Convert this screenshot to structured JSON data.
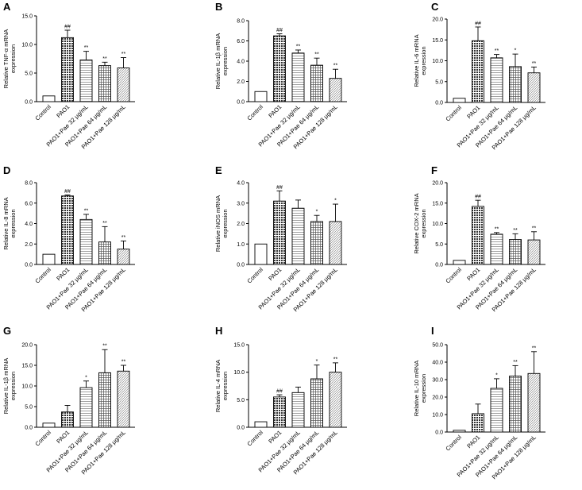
{
  "categories": [
    "Control",
    "PAO1",
    "PAO1+Pae 32 μg/mL",
    "PAO1+Pae 64 μg/mL",
    "PAO1+Pae 128 μg/mL"
  ],
  "chart_data": [
    {
      "type": "bar",
      "panel": "A",
      "ylabel": [
        "Relative TNF-α mRNA",
        "expression"
      ],
      "ylim": [
        0,
        15
      ],
      "yticks": [
        0,
        5,
        10,
        15
      ],
      "tick_labels": [
        "0.0",
        "5.0",
        "10.0",
        "15.0"
      ],
      "values": [
        1.0,
        11.2,
        7.3,
        6.3,
        5.9
      ],
      "errors": [
        0,
        1.3,
        1.5,
        0.6,
        1.8
      ],
      "sig": [
        "",
        "##",
        "**",
        "**",
        "**"
      ]
    },
    {
      "type": "bar",
      "panel": "B",
      "ylabel": [
        "Relative IL-1β mRNA",
        "expression"
      ],
      "ylim": [
        0,
        8
      ],
      "yticks": [
        0,
        2,
        4,
        6,
        8
      ],
      "tick_labels": [
        "0.0",
        "2.0",
        "4.0",
        "6.0",
        "8.0"
      ],
      "values": [
        1.0,
        6.5,
        4.8,
        3.6,
        2.3
      ],
      "errors": [
        0,
        0.2,
        0.3,
        0.7,
        0.9
      ],
      "sig": [
        "",
        "##",
        "**",
        "**",
        "**"
      ]
    },
    {
      "type": "bar",
      "panel": "C",
      "ylabel": [
        "Relative IL-6 mRNA",
        "expression"
      ],
      "ylim": [
        0,
        20
      ],
      "yticks": [
        0,
        5,
        10,
        15,
        20
      ],
      "tick_labels": [
        "0.0",
        "5.0",
        "10.0",
        "15.0",
        "20.0"
      ],
      "values": [
        1.0,
        14.8,
        10.7,
        8.6,
        7.1
      ],
      "errors": [
        0,
        3.3,
        0.8,
        3.0,
        1.4
      ],
      "sig": [
        "",
        "##",
        "**",
        "*",
        "**"
      ]
    },
    {
      "type": "bar",
      "panel": "D",
      "ylabel": [
        "Relative IL-8 mRNA",
        "expression"
      ],
      "ylim": [
        0,
        8
      ],
      "yticks": [
        0,
        2,
        4,
        6,
        8
      ],
      "tick_labels": [
        "0.0",
        "2.0",
        "4.0",
        "6.0",
        "8.0"
      ],
      "values": [
        1.0,
        6.7,
        4.4,
        2.2,
        1.5
      ],
      "errors": [
        0,
        0.1,
        0.5,
        1.5,
        0.8
      ],
      "sig": [
        "",
        "##",
        "**",
        "**",
        "**"
      ]
    },
    {
      "type": "bar",
      "panel": "E",
      "ylabel": [
        "Relative iNOS mRNA",
        "expression"
      ],
      "ylim": [
        0,
        4
      ],
      "yticks": [
        0,
        1,
        2,
        3,
        4
      ],
      "tick_labels": [
        "0.0",
        "1.0",
        "2.0",
        "3.0",
        "4.0"
      ],
      "values": [
        1.0,
        3.1,
        2.75,
        2.1,
        2.1
      ],
      "errors": [
        0,
        0.5,
        0.4,
        0.3,
        0.85
      ],
      "sig": [
        "",
        "##",
        "",
        "*",
        "*"
      ]
    },
    {
      "type": "bar",
      "panel": "F",
      "ylabel": [
        "Relative COX-2 mRNA",
        "expression"
      ],
      "ylim": [
        0,
        20
      ],
      "yticks": [
        0,
        5,
        10,
        15,
        20
      ],
      "tick_labels": [
        "0.0",
        "5.0",
        "10.0",
        "15.0",
        "20.0"
      ],
      "values": [
        1.0,
        14.2,
        7.4,
        6.1,
        6.0
      ],
      "errors": [
        0,
        1.5,
        0.4,
        1.4,
        2.0
      ],
      "sig": [
        "",
        "##",
        "**",
        "**",
        "**"
      ]
    },
    {
      "type": "bar",
      "panel": "G",
      "ylabel": [
        "Relative IL-1β mRNA",
        "expression"
      ],
      "ylim": [
        0,
        20
      ],
      "yticks": [
        0,
        5,
        10,
        15,
        20
      ],
      "tick_labels": [
        "0.0",
        "5.0",
        "10.0",
        "15.0",
        "20.0"
      ],
      "values": [
        1.0,
        3.7,
        9.6,
        13.2,
        13.6
      ],
      "errors": [
        0,
        1.6,
        1.6,
        5.6,
        1.4
      ],
      "sig": [
        "",
        "",
        "*",
        "**",
        "**"
      ]
    },
    {
      "type": "bar",
      "panel": "H",
      "ylabel": [
        "Relative IL-4 mRNA",
        "expression"
      ],
      "ylim": [
        0,
        15
      ],
      "yticks": [
        0,
        5,
        10,
        15
      ],
      "tick_labels": [
        "0.0",
        "5.0",
        "10.0",
        "15.0"
      ],
      "values": [
        1.0,
        5.5,
        6.3,
        8.8,
        10.0
      ],
      "errors": [
        0,
        0.4,
        1.0,
        2.5,
        1.7
      ],
      "sig": [
        "",
        "##",
        "",
        "*",
        "**"
      ]
    },
    {
      "type": "bar",
      "panel": "I",
      "ylabel": [
        "Relative IL-10 mRNA",
        "expression"
      ],
      "ylim": [
        0,
        50
      ],
      "yticks": [
        0,
        10,
        20,
        30,
        40,
        50
      ],
      "tick_labels": [
        "0.0",
        "10.0",
        "20.0",
        "30.0",
        "40.0",
        "50.0"
      ],
      "values": [
        1.0,
        10.5,
        25.0,
        32.0,
        33.5
      ],
      "errors": [
        0,
        5.5,
        5.5,
        6.0,
        12.5
      ],
      "sig": [
        "",
        "",
        "*",
        "**",
        "**"
      ]
    }
  ]
}
